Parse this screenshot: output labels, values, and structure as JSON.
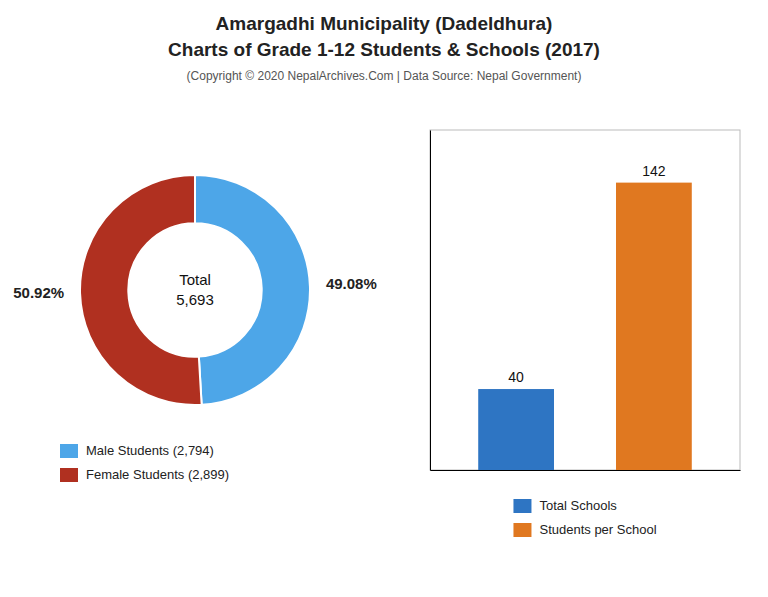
{
  "chart_data": [
    {
      "type": "pie",
      "title": "Amargadhi Municipality (Dadeldhura)\nCharts of Grade 1-12 Students & Schools (2017)",
      "subtitle": "(Copyright © 2020 NepalArchives.Com | Data Source: Nepal Government)",
      "categories": [
        "Male Students (2,794)",
        "Female Students (2,899)"
      ],
      "values": [
        49.08,
        50.92
      ],
      "value_labels": [
        "49.08%",
        "50.92%"
      ],
      "colors": [
        "#4da6e8",
        "#b03020"
      ],
      "annotations": [
        "Total\n5,693"
      ],
      "data_labels": true,
      "legend": "bottom-left"
    },
    {
      "type": "bar",
      "categories": [
        "Total Schools",
        "Students per School"
      ],
      "values": [
        40,
        142
      ],
      "colors": [
        "#2e75c3",
        "#e07820"
      ],
      "ylim": [
        0,
        168
      ],
      "data_labels": true,
      "tick_labels": false,
      "legend": "bottom"
    }
  ]
}
